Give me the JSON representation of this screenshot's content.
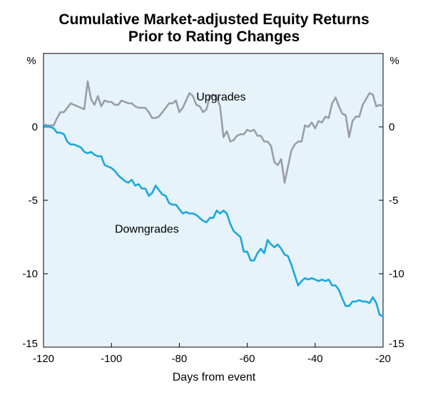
{
  "title_line1": "Cumulative Market-adjusted Equity Returns",
  "title_line2": "Prior to Rating Changes",
  "chart_data": {
    "type": "line",
    "xlabel": "Days from event",
    "ylabel_left": "%",
    "ylabel_right": "%",
    "xlim": [
      -120,
      -20
    ],
    "ylim": [
      -15,
      5
    ],
    "x_ticks": [
      -120,
      -100,
      -80,
      -60,
      -40,
      -20
    ],
    "y_ticks": [
      0,
      -5,
      -10,
      -15
    ],
    "colors": {
      "upgrades": "#9a9ea3",
      "downgrades": "#1aa7e0",
      "panel_bg": "#e6f3fb"
    },
    "series": [
      {
        "name": "Upgrades",
        "values": [
          [
            -120,
            0.2
          ],
          [
            -119,
            0.1
          ],
          [
            -118,
            0.1
          ],
          [
            -117,
            0.1
          ],
          [
            -116,
            0.6
          ],
          [
            -115,
            1.0
          ],
          [
            -114,
            1.0
          ],
          [
            -113,
            1.3
          ],
          [
            -112,
            1.6
          ],
          [
            -111,
            1.5
          ],
          [
            -110,
            1.4
          ],
          [
            -109,
            1.3
          ],
          [
            -108,
            1.2
          ],
          [
            -107,
            3.1
          ],
          [
            -106,
            1.9
          ],
          [
            -105,
            1.5
          ],
          [
            -104,
            2.1
          ],
          [
            -103,
            1.4
          ],
          [
            -102,
            1.8
          ],
          [
            -101,
            1.7
          ],
          [
            -100,
            1.7
          ],
          [
            -99,
            1.5
          ],
          [
            -98,
            1.5
          ],
          [
            -97,
            1.8
          ],
          [
            -96,
            1.7
          ],
          [
            -95,
            1.6
          ],
          [
            -94,
            1.6
          ],
          [
            -93,
            1.4
          ],
          [
            -92,
            1.3
          ],
          [
            -91,
            1.3
          ],
          [
            -90,
            1.3
          ],
          [
            -89,
            1.0
          ],
          [
            -88,
            0.6
          ],
          [
            -87,
            0.6
          ],
          [
            -86,
            0.7
          ],
          [
            -85,
            1.0
          ],
          [
            -84,
            1.3
          ],
          [
            -83,
            1.6
          ],
          [
            -82,
            1.6
          ],
          [
            -81,
            1.8
          ],
          [
            -80,
            1.0
          ],
          [
            -79,
            1.3
          ],
          [
            -78,
            1.8
          ],
          [
            -77,
            2.3
          ],
          [
            -76,
            2.1
          ],
          [
            -75,
            1.5
          ],
          [
            -74,
            1.4
          ],
          [
            -73,
            1.0
          ],
          [
            -72,
            1.2
          ],
          [
            -71,
            2.1
          ],
          [
            -70,
            2.2
          ],
          [
            -69,
            2.0
          ],
          [
            -68,
            1.4
          ],
          [
            -67,
            -0.7
          ],
          [
            -66,
            -0.3
          ],
          [
            -65,
            -1.0
          ],
          [
            -64,
            -0.9
          ],
          [
            -63,
            -0.6
          ],
          [
            -62,
            -0.5
          ],
          [
            -61,
            -0.5
          ],
          [
            -60,
            -0.2
          ],
          [
            -59,
            -0.3
          ],
          [
            -58,
            -0.2
          ],
          [
            -57,
            -0.6
          ],
          [
            -56,
            -0.6
          ],
          [
            -55,
            -1.0
          ],
          [
            -54,
            -1.0
          ],
          [
            -53,
            -1.3
          ],
          [
            -52,
            -2.4
          ],
          [
            -51,
            -2.6
          ],
          [
            -50,
            -2.2
          ],
          [
            -49,
            -3.8
          ],
          [
            -48,
            -2.7
          ],
          [
            -47,
            -1.6
          ],
          [
            -46,
            -1.2
          ],
          [
            -45,
            -1.0
          ],
          [
            -44,
            -1.0
          ],
          [
            -43,
            0.1
          ],
          [
            -42,
            0.0
          ],
          [
            -41,
            0.3
          ],
          [
            -40,
            -0.1
          ],
          [
            -39,
            0.4
          ],
          [
            -38,
            0.3
          ],
          [
            -37,
            0.7
          ],
          [
            -36,
            0.6
          ],
          [
            -35,
            1.6
          ],
          [
            -34,
            2.0
          ],
          [
            -33,
            1.4
          ],
          [
            -32,
            0.9
          ],
          [
            -31,
            0.8
          ],
          [
            -30,
            -0.7
          ],
          [
            -29,
            0.4
          ],
          [
            -28,
            0.7
          ],
          [
            -27,
            0.7
          ],
          [
            -26,
            1.5
          ],
          [
            -25,
            1.9
          ],
          [
            -24,
            2.3
          ],
          [
            -23,
            2.2
          ],
          [
            -22,
            1.4
          ],
          [
            -21,
            1.5
          ],
          [
            -20,
            1.4
          ]
        ]
      },
      {
        "name": "Downgrades",
        "values": [
          [
            -120,
            0.1
          ],
          [
            -119,
            0.0
          ],
          [
            -118,
            0.0
          ],
          [
            -117,
            -0.1
          ],
          [
            -116,
            -0.4
          ],
          [
            -115,
            -0.4
          ],
          [
            -114,
            -0.5
          ],
          [
            -113,
            -1.0
          ],
          [
            -112,
            -1.2
          ],
          [
            -111,
            -1.2
          ],
          [
            -110,
            -1.3
          ],
          [
            -109,
            -1.4
          ],
          [
            -108,
            -1.7
          ],
          [
            -107,
            -1.8
          ],
          [
            -106,
            -1.7
          ],
          [
            -105,
            -1.9
          ],
          [
            -104,
            -2.0
          ],
          [
            -103,
            -2.0
          ],
          [
            -102,
            -2.6
          ],
          [
            -101,
            -2.7
          ],
          [
            -100,
            -2.8
          ],
          [
            -99,
            -3.0
          ],
          [
            -98,
            -3.3
          ],
          [
            -97,
            -3.5
          ],
          [
            -96,
            -3.7
          ],
          [
            -95,
            -3.8
          ],
          [
            -94,
            -3.6
          ],
          [
            -93,
            -4.0
          ],
          [
            -92,
            -3.9
          ],
          [
            -91,
            -4.2
          ],
          [
            -90,
            -4.2
          ],
          [
            -89,
            -4.7
          ],
          [
            -88,
            -4.5
          ],
          [
            -87,
            -4.0
          ],
          [
            -86,
            -4.3
          ],
          [
            -85,
            -4.6
          ],
          [
            -84,
            -4.7
          ],
          [
            -83,
            -5.2
          ],
          [
            -82,
            -5.3
          ],
          [
            -81,
            -5.3
          ],
          [
            -80,
            -5.6
          ],
          [
            -79,
            -5.9
          ],
          [
            -78,
            -5.8
          ],
          [
            -77,
            -5.9
          ],
          [
            -76,
            -5.9
          ],
          [
            -75,
            -6.0
          ],
          [
            -74,
            -6.2
          ],
          [
            -73,
            -6.4
          ],
          [
            -72,
            -6.5
          ],
          [
            -71,
            -6.2
          ],
          [
            -70,
            -6.2
          ],
          [
            -69,
            -5.7
          ],
          [
            -68,
            -5.9
          ],
          [
            -67,
            -5.7
          ],
          [
            -66,
            -5.9
          ],
          [
            -65,
            -6.6
          ],
          [
            -64,
            -7.1
          ],
          [
            -63,
            -7.3
          ],
          [
            -62,
            -7.5
          ],
          [
            -61,
            -8.5
          ],
          [
            -60,
            -8.5
          ],
          [
            -59,
            -9.1
          ],
          [
            -58,
            -9.1
          ],
          [
            -57,
            -8.6
          ],
          [
            -56,
            -8.3
          ],
          [
            -55,
            -8.6
          ],
          [
            -54,
            -7.7
          ],
          [
            -53,
            -8.0
          ],
          [
            -52,
            -8.2
          ],
          [
            -51,
            -8.0
          ],
          [
            -50,
            -8.3
          ],
          [
            -49,
            -8.7
          ],
          [
            -48,
            -8.8
          ],
          [
            -47,
            -9.4
          ],
          [
            -46,
            -10.1
          ],
          [
            -45,
            -10.8
          ],
          [
            -44,
            -10.5
          ],
          [
            -43,
            -10.3
          ],
          [
            -42,
            -10.4
          ],
          [
            -41,
            -10.3
          ],
          [
            -40,
            -10.4
          ],
          [
            -39,
            -10.5
          ],
          [
            -38,
            -10.4
          ],
          [
            -37,
            -10.5
          ],
          [
            -36,
            -10.4
          ],
          [
            -35,
            -10.8
          ],
          [
            -34,
            -10.8
          ],
          [
            -33,
            -11.1
          ],
          [
            -32,
            -11.7
          ],
          [
            -31,
            -12.2
          ],
          [
            -30,
            -12.2
          ],
          [
            -29,
            -11.9
          ],
          [
            -28,
            -11.9
          ],
          [
            -27,
            -11.8
          ],
          [
            -26,
            -11.9
          ],
          [
            -25,
            -11.9
          ],
          [
            -24,
            -12.0
          ],
          [
            -23,
            -11.6
          ],
          [
            -22,
            -12.0
          ],
          [
            -21,
            -12.8
          ],
          [
            -20,
            -12.9
          ]
        ]
      }
    ],
    "annotations": [
      {
        "text": "Upgrades",
        "x": -75,
        "y": 1.8
      },
      {
        "text": "Downgrades",
        "x": -99,
        "y": -7.2
      }
    ],
    "grid": false,
    "legend": "none"
  }
}
